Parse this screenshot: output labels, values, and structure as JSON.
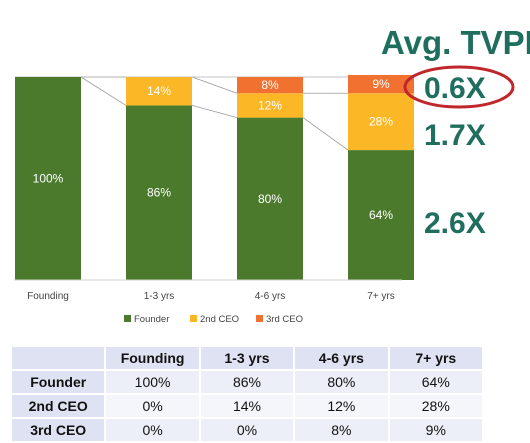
{
  "chart_data": {
    "type": "bar",
    "stacked": true,
    "categories": [
      "Founding",
      "1-3 yrs",
      "4-6 yrs",
      "7+ yrs"
    ],
    "series": [
      {
        "name": "Founder",
        "color": "#4b7a2d",
        "values": [
          100,
          86,
          80,
          64
        ],
        "labels": [
          "100%",
          "86%",
          "80%",
          "64%"
        ]
      },
      {
        "name": "2nd CEO",
        "color": "#fcb727",
        "values": [
          0,
          14,
          12,
          28
        ],
        "labels": [
          "",
          "14%",
          "12%",
          "28%"
        ]
      },
      {
        "name": "3rd CEO",
        "color": "#f07130",
        "values": [
          0,
          0,
          8,
          9
        ],
        "labels": [
          "",
          "",
          "8%",
          "9%"
        ]
      }
    ],
    "ylim": [
      0,
      100
    ],
    "grid": false,
    "legend_position": "bottom"
  },
  "tvpi": {
    "title": "Avg. TVPI",
    "values": [
      "0.6X",
      "1.7X",
      "2.6X"
    ],
    "highlight_color": "#c0272d"
  },
  "table": {
    "headers": [
      "",
      "Founding",
      "1-3 yrs",
      "4-6 yrs",
      "7+ yrs"
    ],
    "rows": [
      {
        "label": "Founder",
        "cells": [
          "100%",
          "86%",
          "80%",
          "64%"
        ]
      },
      {
        "label": "2nd CEO",
        "cells": [
          "0%",
          "14%",
          "12%",
          "28%"
        ]
      },
      {
        "label": "3rd CEO",
        "cells": [
          "0%",
          "0%",
          "8%",
          "9%"
        ]
      }
    ]
  }
}
